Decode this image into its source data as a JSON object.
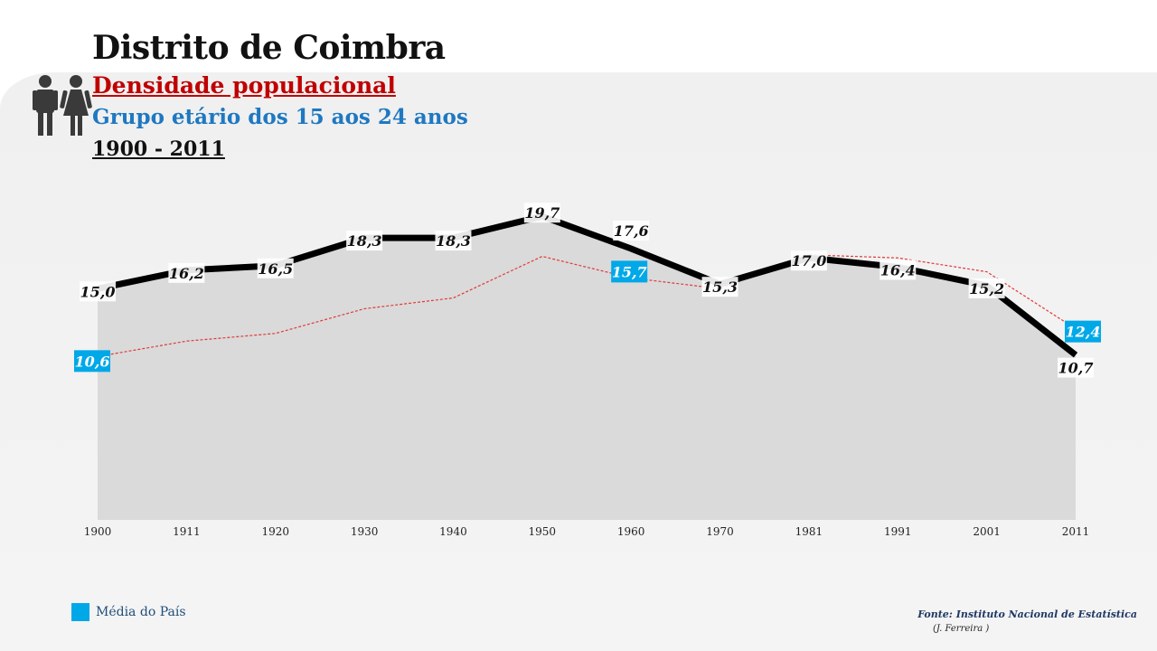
{
  "header": {
    "title": "Distrito de Coimbra",
    "subtitle": "Densidade populacional",
    "group": "Grupo etário dos 15 aos 24 anos",
    "period": "1900 - 2011"
  },
  "icons": {
    "people": "man-woman-icon"
  },
  "colors": {
    "district_line": "#000000",
    "country_line": "#e03a3a",
    "country_badge": "#00a8e8",
    "area_fill": "#dadada"
  },
  "legend": {
    "country_label": "Média do País"
  },
  "footer": {
    "source": "Fonte: Instituto Nacional de Estatística",
    "author": "(J. Ferreira )"
  },
  "chart_data": {
    "type": "line",
    "x": [
      "1900",
      "1911",
      "1920",
      "1930",
      "1940",
      "1950",
      "1960",
      "1970",
      "1981",
      "1991",
      "2001",
      "2011"
    ],
    "ylim": [
      0,
      22
    ],
    "grid": false,
    "series": [
      {
        "values": [
          15.0,
          16.2,
          16.5,
          18.3,
          18.3,
          19.7,
          17.6,
          15.3,
          17.0,
          16.4,
          15.2,
          10.7
        ],
        "labels": [
          "15,0",
          "16,2",
          "16,5",
          "18,3",
          "18,3",
          "19,7",
          "17,6",
          "15,3",
          "17,0",
          "16,4",
          "15,2",
          "10,7"
        ]
      },
      {
        "name": "Média do País",
        "values": [
          10.6,
          11.6,
          12.1,
          13.7,
          14.4,
          17.1,
          15.7,
          15.0,
          17.2,
          17.0,
          16.1,
          12.4
        ],
        "labels": [
          "10,6",
          "",
          "",
          "",
          "",
          "",
          "15,7",
          "",
          "",
          "",
          "",
          "12,4"
        ]
      }
    ]
  }
}
